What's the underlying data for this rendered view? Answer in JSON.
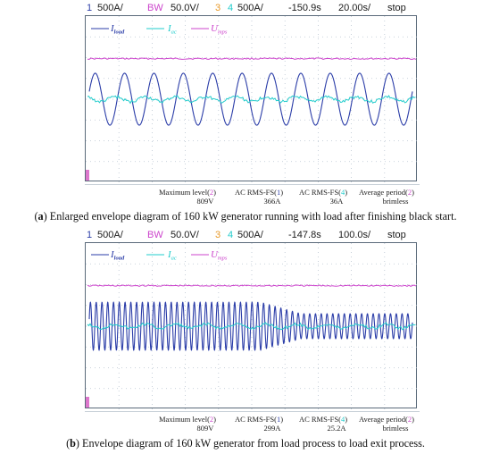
{
  "colors": {
    "ch1": "#2b3da8",
    "ch2": "#cc44cc",
    "ch3": "#e89a2a",
    "ch4": "#22cccc",
    "dot_grid": "#b9c4d0",
    "border": "#5a6a7a"
  },
  "panels": [
    {
      "header": {
        "ch1_num": "1",
        "ch1_scale": "500A/",
        "bw": "BW",
        "bw_scale": "50.0V/",
        "ch3_num": "3",
        "ch4_num": "4",
        "ch4_scale": "500A/",
        "offset": "-150.9s",
        "timebase": "20.00s/",
        "state": "stop"
      },
      "legend": {
        "s1_main": "I",
        "s1_sub": "load",
        "s2_main": "I",
        "s2_sub": "ac",
        "s3_main": "U",
        "s3_sub": "mps"
      },
      "measurements": [
        {
          "name": "Maximum level",
          "ch": "2",
          "value": "809V"
        },
        {
          "name": "AC RMS-FS",
          "ch": "1",
          "value": "366A"
        },
        {
          "name": "AC RMS-FS",
          "ch": "4",
          "value": "36A"
        },
        {
          "name": "Average period",
          "ch": "2",
          "value": "brimless"
        }
      ],
      "caption": {
        "label": "a",
        "text": "Enlarged envelope diagram of 160 kW generator running with load after finishing black start."
      }
    },
    {
      "header": {
        "ch1_num": "1",
        "ch1_scale": "500A/",
        "bw": "BW",
        "bw_scale": "50.0V/",
        "ch3_num": "3",
        "ch4_num": "4",
        "ch4_scale": "500A/",
        "offset": "-147.8s",
        "timebase": "100.0s/",
        "state": "stop"
      },
      "legend": {
        "s1_main": "I",
        "s1_sub": "load",
        "s2_main": "I",
        "s2_sub": "ac",
        "s3_main": "U",
        "s3_sub": "mps"
      },
      "measurements": [
        {
          "name": "Maximum level",
          "ch": "2",
          "value": "809V"
        },
        {
          "name": "AC RMS-FS",
          "ch": "1",
          "value": "299A"
        },
        {
          "name": "AC RMS-FS",
          "ch": "4",
          "value": "25.2A"
        },
        {
          "name": "Average period",
          "ch": "2",
          "value": "brimless"
        }
      ],
      "caption": {
        "label": "b",
        "text": "Envelope diagram of 160 kW generator from load process to load exit process."
      }
    }
  ],
  "chart_data": [
    {
      "type": "line",
      "series": [
        {
          "name": "I_load",
          "cycles": 11,
          "amplitude_div": 1.25,
          "offset_div": 0
        },
        {
          "name": "I_ac",
          "cycles": 11,
          "amplitude_div": 0.12,
          "offset_div": 0
        },
        {
          "name": "U_mps",
          "amplitude_div": 0,
          "offset_div": 1.95
        }
      ]
    },
    {
      "type": "line",
      "series": [
        {
          "name": "I_load",
          "cycles": 56,
          "amplitude_div_start": 1.15,
          "amplitude_div_end": 0.6,
          "envelope_change_fraction": 0.53
        },
        {
          "name": "I_ac",
          "amplitude_div": 0.1,
          "offset_div": 0
        },
        {
          "name": "U_mps",
          "amplitude_div": 0,
          "offset_div": 1.95
        }
      ]
    }
  ]
}
